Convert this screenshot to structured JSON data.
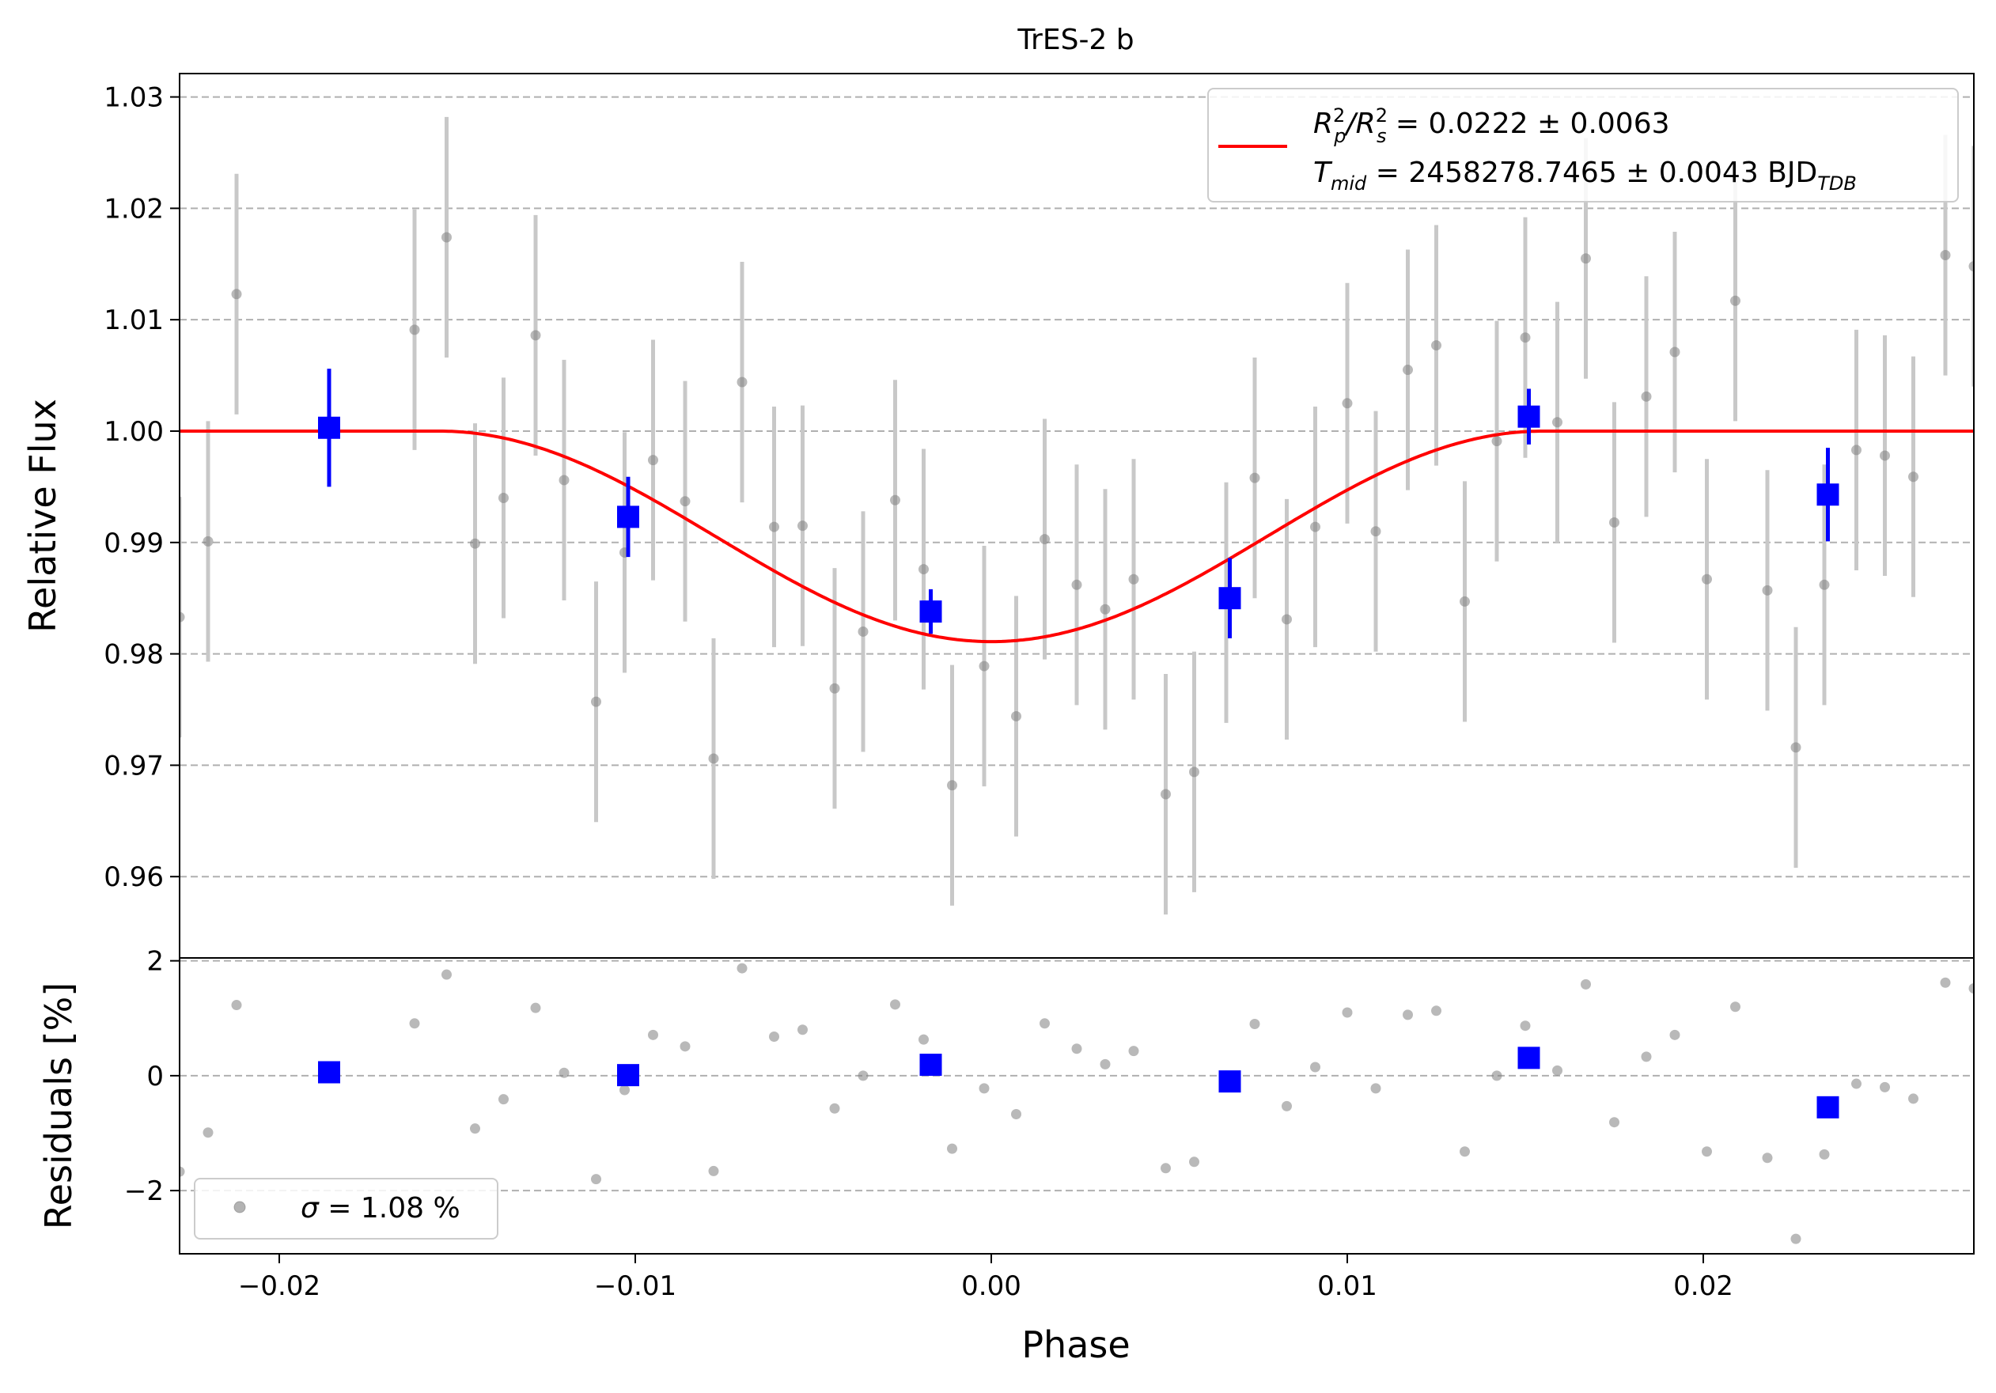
{
  "chart_data": {
    "type": "scatter",
    "title": "TrES-2 b",
    "xlabel": "Phase",
    "top_panel": {
      "ylabel": "Relative Flux",
      "xlim": [
        -0.0228,
        0.0276
      ],
      "ylim": [
        0.9527,
        1.0321
      ],
      "yticks": [
        0.96,
        0.97,
        0.98,
        0.99,
        1.0,
        1.01,
        1.02,
        1.03
      ],
      "ytick_labels": [
        "0.96",
        "0.97",
        "0.98",
        "0.99",
        "1.00",
        "1.01",
        "1.02",
        "1.03"
      ],
      "grid": "horizontal dashed",
      "legend_position": "upper-right",
      "legend": {
        "line1": {
          "main": "R",
          "sub_a": "p",
          "sup_a": "2",
          "slash": "/R",
          "sub_b": "s",
          "sup_b": "2",
          "value": " = 0.0222 ± 0.0063"
        },
        "line2": {
          "main": "T",
          "sub": "mid",
          "value": " = 2458278.7465 ± 0.0043 BJD",
          "unit_sub": "TDB"
        }
      },
      "model": {
        "color": "#ff0000",
        "baseline": 1.0,
        "depth": 0.0189,
        "t1": -0.0155,
        "t2": 0.0155,
        "note_shape": "cosine-shaped transit, ingress/egress at t1/t2"
      },
      "raw_points": {
        "color": "#808080",
        "errorbar_color": "#c8c8c8",
        "x": [
          -0.0228,
          -0.022,
          -0.0212,
          -0.0162,
          -0.0153,
          -0.0145,
          -0.0137,
          -0.0128,
          -0.012,
          -0.0111,
          -0.0103,
          -0.0095,
          -0.0086,
          -0.0078,
          -0.007,
          -0.0061,
          -0.0053,
          -0.0044,
          -0.0036,
          -0.0027,
          -0.0019,
          -0.0011,
          -0.0002,
          0.0007,
          0.0015,
          0.0024,
          0.0032,
          0.004,
          0.0049,
          0.0057,
          0.0066,
          0.0074,
          0.0083,
          0.0091,
          0.01,
          0.0108,
          0.0117,
          0.0125,
          0.0133,
          0.0142,
          0.015,
          0.0159,
          0.0167,
          0.0175,
          0.0184,
          0.0192,
          0.0201,
          0.0209,
          0.0218,
          0.0226,
          0.0234,
          0.0243,
          0.0251,
          0.0259,
          0.0268,
          0.0276
        ],
        "y": [
          0.9833,
          0.9901,
          1.0123,
          1.0091,
          1.0174,
          0.9899,
          0.994,
          1.0086,
          0.9956,
          0.9757,
          0.9891,
          0.9974,
          0.9937,
          0.9706,
          1.0044,
          0.9914,
          0.9915,
          0.9769,
          0.982,
          0.9938,
          0.9876,
          0.9682,
          0.9789,
          0.9744,
          0.9903,
          0.9862,
          0.984,
          0.9867,
          0.9674,
          0.9694,
          0.9846,
          0.9958,
          0.9831,
          0.9914,
          1.0025,
          0.991,
          1.0055,
          1.0077,
          0.9847,
          0.9991,
          1.0084,
          1.0008,
          1.0155,
          0.9918,
          1.0031,
          1.0071,
          0.9867,
          1.0117,
          0.9857,
          0.9716,
          0.9862,
          0.9983,
          0.9978,
          0.9959,
          1.0158,
          1.0148
        ],
        "yerr": 0.0108
      },
      "binned_points": {
        "color": "#0000ff",
        "x": [
          -0.0186,
          -0.0102,
          -0.0017,
          0.0067,
          0.0151,
          0.0235
        ],
        "y": [
          1.0003,
          0.9923,
          0.9838,
          0.985,
          1.0013,
          0.9943
        ],
        "yerr": [
          0.0053,
          0.0036,
          0.002,
          0.0036,
          0.0025,
          0.0042
        ]
      }
    },
    "bottom_panel": {
      "ylabel": "Residuals [%]",
      "ylim": [
        -3.1,
        2.05
      ],
      "yticks": [
        -2,
        0,
        2
      ],
      "ytick_labels": [
        "−2",
        "0",
        "2"
      ],
      "grid": "horizontal dashed",
      "legend_position": "lower-left",
      "legend": {
        "symbol": "σ",
        "value": " = 1.08 %"
      },
      "raw_residuals": {
        "color": "#808080",
        "x": [
          -0.0228,
          -0.022,
          -0.0212,
          -0.0162,
          -0.0153,
          -0.0145,
          -0.0137,
          -0.0128,
          -0.012,
          -0.0111,
          -0.0103,
          -0.0095,
          -0.0086,
          -0.0078,
          -0.007,
          -0.0061,
          -0.0053,
          -0.0044,
          -0.0036,
          -0.0027,
          -0.0019,
          -0.0011,
          -0.0002,
          0.0007,
          0.0015,
          0.0024,
          0.0032,
          0.004,
          0.0049,
          0.0057,
          0.0066,
          0.0074,
          0.0083,
          0.0091,
          0.01,
          0.0108,
          0.0117,
          0.0125,
          0.0133,
          0.0142,
          0.015,
          0.0159,
          0.0167,
          0.0175,
          0.0184,
          0.0192,
          0.0201,
          0.0209,
          0.0218,
          0.0226,
          0.0234,
          0.0243,
          0.0251,
          0.0259,
          0.0268,
          0.0276
        ],
        "y": [
          -1.67,
          -0.99,
          1.23,
          0.91,
          1.76,
          -0.92,
          -0.41,
          1.18,
          0.05,
          -1.8,
          -0.25,
          0.71,
          0.51,
          -1.66,
          1.87,
          0.68,
          0.8,
          -0.57,
          0.0,
          1.24,
          0.63,
          -1.27,
          -0.22,
          -0.67,
          0.91,
          0.47,
          0.2,
          0.43,
          -1.61,
          -1.5,
          0.0,
          0.9,
          -0.53,
          0.15,
          1.1,
          -0.22,
          1.06,
          1.13,
          -1.32,
          0.0,
          0.87,
          0.09,
          1.59,
          -0.81,
          0.33,
          0.71,
          -1.32,
          1.2,
          -1.43,
          -2.84,
          -1.37,
          -0.14,
          -0.2,
          -0.4,
          1.62,
          1.52
        ]
      },
      "binned_residuals": {
        "color": "#0000ff",
        "x": [
          -0.0186,
          -0.0102,
          -0.0017,
          0.0067,
          0.0151,
          0.0235
        ],
        "y": [
          0.06,
          0.01,
          0.19,
          -0.1,
          0.31,
          -0.55
        ]
      }
    },
    "xticks": [
      -0.02,
      -0.01,
      0.0,
      0.01,
      0.02
    ],
    "xtick_labels": [
      "−0.02",
      "−0.01",
      "0.00",
      "0.01",
      "0.02"
    ]
  }
}
